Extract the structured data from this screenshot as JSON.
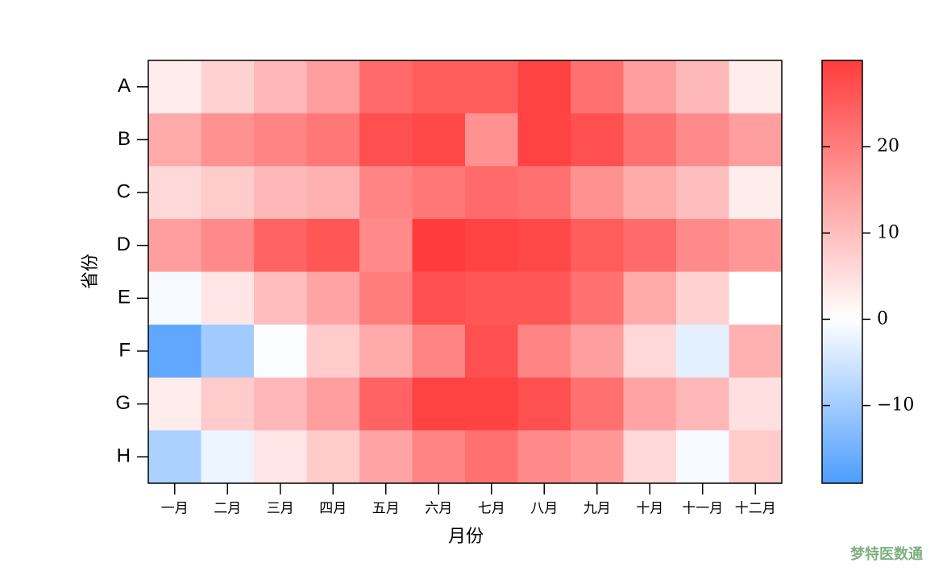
{
  "chart_data": {
    "type": "heatmap",
    "xlabel": "月份",
    "ylabel": "省份",
    "x_categories": [
      "一月",
      "二月",
      "三月",
      "四月",
      "五月",
      "六月",
      "七月",
      "八月",
      "九月",
      "十月",
      "十一月",
      "十二月"
    ],
    "y_categories": [
      "A",
      "B",
      "C",
      "D",
      "E",
      "F",
      "G",
      "H"
    ],
    "values": [
      [
        3,
        7,
        11,
        15,
        23,
        25,
        25,
        29,
        22,
        15,
        11,
        3
      ],
      [
        13,
        17,
        19,
        21,
        27,
        28,
        17,
        29,
        27,
        22,
        18,
        15
      ],
      [
        6,
        8,
        11,
        12,
        19,
        21,
        23,
        22,
        17,
        13,
        10,
        3
      ],
      [
        15,
        18,
        24,
        26,
        18,
        30,
        29,
        28,
        25,
        23,
        18,
        16
      ],
      [
        -1,
        4,
        10,
        14,
        20,
        27,
        26,
        26,
        22,
        13,
        7,
        0
      ],
      [
        -17,
        -10,
        -0.5,
        8,
        13,
        19,
        27,
        19,
        15,
        6,
        -3,
        12
      ],
      [
        3,
        8,
        11,
        15,
        24,
        29,
        29,
        27,
        22,
        14,
        11,
        5
      ],
      [
        -9,
        -2,
        4,
        8,
        14,
        19,
        22,
        18,
        16,
        6,
        -1,
        8
      ]
    ],
    "colorbar_lim": [
      -19,
      30
    ],
    "colorbar_ticks": [
      {
        "value": -10,
        "label": "−10"
      },
      0,
      10,
      20
    ],
    "colors": {
      "low": "#4d9dff",
      "mid": "#ffffff",
      "high": "#ff3c3c"
    },
    "watermark": "梦特医数通"
  }
}
